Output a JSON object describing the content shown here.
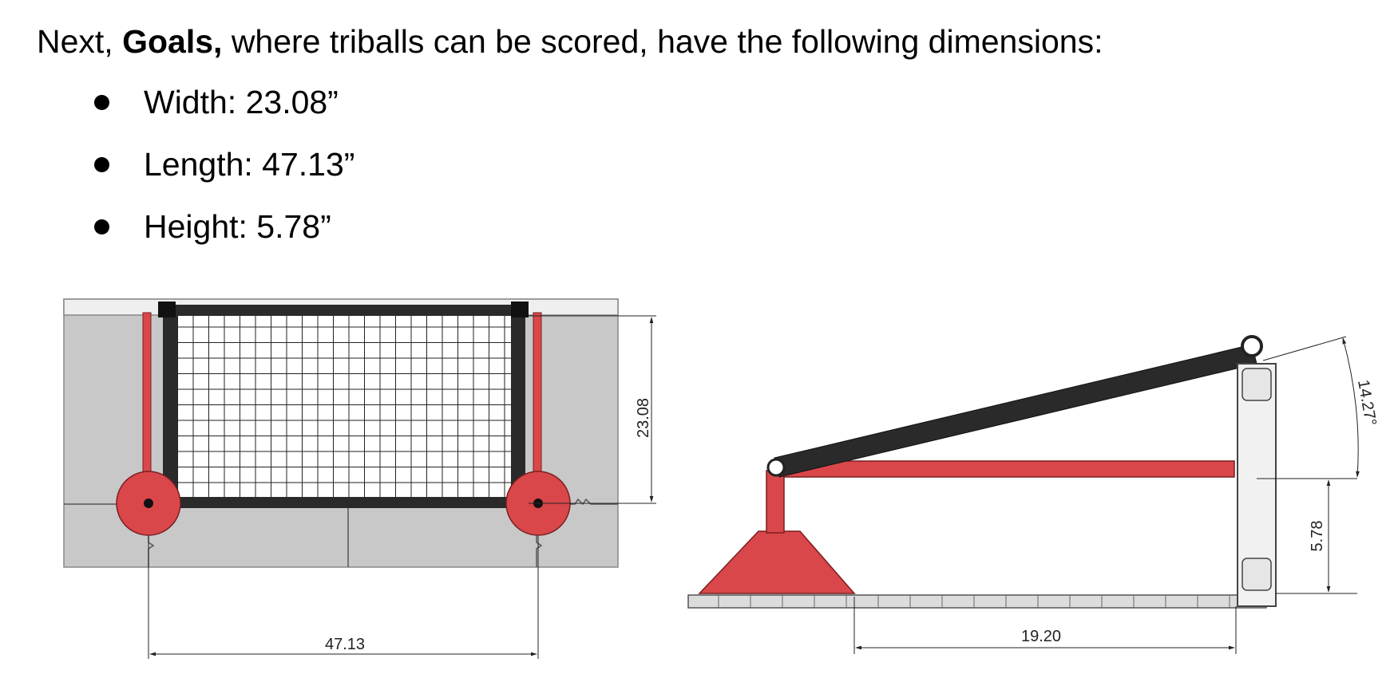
{
  "intro": {
    "prefix": "Next, ",
    "bold": "Goals,",
    "suffix": " where triballs can be scored, have the following dimensions:"
  },
  "bullets": [
    {
      "text": "Width: 23.08”"
    },
    {
      "text": "Length: 47.13”"
    },
    {
      "text": "Height: 5.78”"
    }
  ],
  "figure_top": {
    "dim_height": "23.08",
    "dim_width": "47.13"
  },
  "figure_side": {
    "dim_angle": "14.27°",
    "dim_height": "5.78",
    "dim_length": "19.20"
  },
  "colors": {
    "goal_red": "#d9474a",
    "frame_black": "#2a2a2a",
    "tile_gray": "#c8c8c8"
  }
}
